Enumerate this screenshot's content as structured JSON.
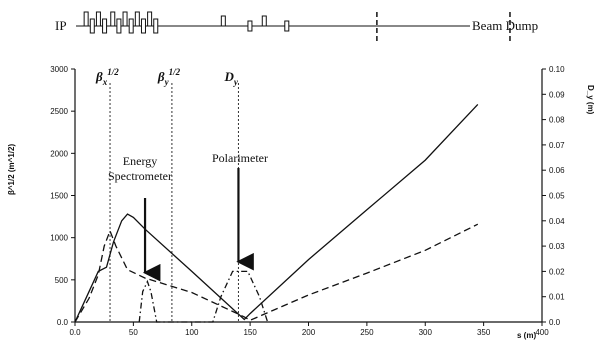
{
  "lattice": {
    "left_label": "IP",
    "right_label": "Beam Dump",
    "element_positions": [
      3,
      6,
      9,
      12,
      16,
      19,
      22,
      25,
      28,
      31,
      34,
      37,
      70,
      83,
      90,
      101
    ],
    "dashed_marker_positions": [
      145,
      210
    ]
  },
  "chart_data": {
    "type": "line",
    "title": "",
    "xlabel": "s (m)",
    "ylabel": "β^1/2 (m^1/2)",
    "ylabel_right": "D_y (m)",
    "xlim": [
      0,
      400
    ],
    "ylim": [
      0,
      3000
    ],
    "ylim_right": [
      0,
      0.1
    ],
    "x_ticks": [
      0.0,
      50,
      100,
      150,
      200,
      250,
      300,
      350,
      400
    ],
    "x_tick_labels": [
      "0.0",
      "50",
      "100",
      "150",
      "200",
      "250",
      "300",
      "350",
      "400"
    ],
    "y_ticks": [
      0.0,
      500,
      1000,
      1500,
      2000,
      2500,
      3000
    ],
    "y_tick_labels": [
      "0.0",
      "500",
      "1000",
      "1500",
      "2000",
      "2500",
      "3000"
    ],
    "y2_ticks": [
      0.0,
      0.01,
      0.02,
      0.03,
      0.04,
      0.05,
      0.06,
      0.07,
      0.08,
      0.09,
      0.1
    ],
    "y2_tick_labels": [
      "0.0",
      "0.01",
      "0.02",
      "0.03",
      "0.04",
      "0.05",
      "0.06",
      "0.07",
      "0.08",
      "0.09",
      "0.10"
    ],
    "grid": false,
    "series": [
      {
        "style": "solid",
        "points": [
          [
            0,
            0
          ],
          [
            10,
            300
          ],
          [
            20,
            600
          ],
          [
            27,
            650
          ],
          [
            33,
            950
          ],
          [
            40,
            1200
          ],
          [
            45,
            1280
          ],
          [
            50,
            1240
          ],
          [
            60,
            1100
          ],
          [
            100,
            600
          ],
          [
            145,
            30
          ],
          [
            150,
            100
          ],
          [
            200,
            740
          ],
          [
            250,
            1330
          ],
          [
            300,
            1920
          ],
          [
            345,
            2580
          ]
        ]
      },
      {
        "style": "dashed",
        "points": [
          [
            0,
            0
          ],
          [
            12,
            280
          ],
          [
            20,
            560
          ],
          [
            25,
            900
          ],
          [
            30,
            1080
          ],
          [
            35,
            900
          ],
          [
            45,
            620
          ],
          [
            60,
            520
          ],
          [
            100,
            350
          ],
          [
            145,
            60
          ],
          [
            150,
            20
          ],
          [
            200,
            320
          ],
          [
            250,
            580
          ],
          [
            300,
            850
          ],
          [
            345,
            1160
          ]
        ]
      },
      {
        "style": "dash-dot",
        "axis": "right",
        "points": [
          [
            55,
            0
          ],
          [
            58,
            0.012
          ],
          [
            62,
            0.016
          ],
          [
            65,
            0.012
          ],
          [
            70,
            0
          ],
          [
            118,
            0
          ],
          [
            125,
            0.01
          ],
          [
            135,
            0.02
          ],
          [
            148,
            0.02
          ],
          [
            158,
            0.01
          ],
          [
            165,
            0
          ]
        ]
      }
    ],
    "vertical_markers": [
      {
        "x": 30,
        "label_main": "β",
        "label_sup": "1/2",
        "label_sub": "x"
      },
      {
        "x": 83,
        "label_main": "β",
        "label_sup": "1/2",
        "label_sub": "y"
      },
      {
        "x": 140,
        "label_main": "D",
        "label_sup": "",
        "label_sub": "y"
      }
    ],
    "annotations": [
      {
        "lines": [
          "Energy",
          "Spectrometer"
        ],
        "arrow_to": [
          60,
          490
        ]
      },
      {
        "lines": [
          "Polarimeter"
        ],
        "arrow_to": [
          140,
          620
        ]
      }
    ]
  }
}
